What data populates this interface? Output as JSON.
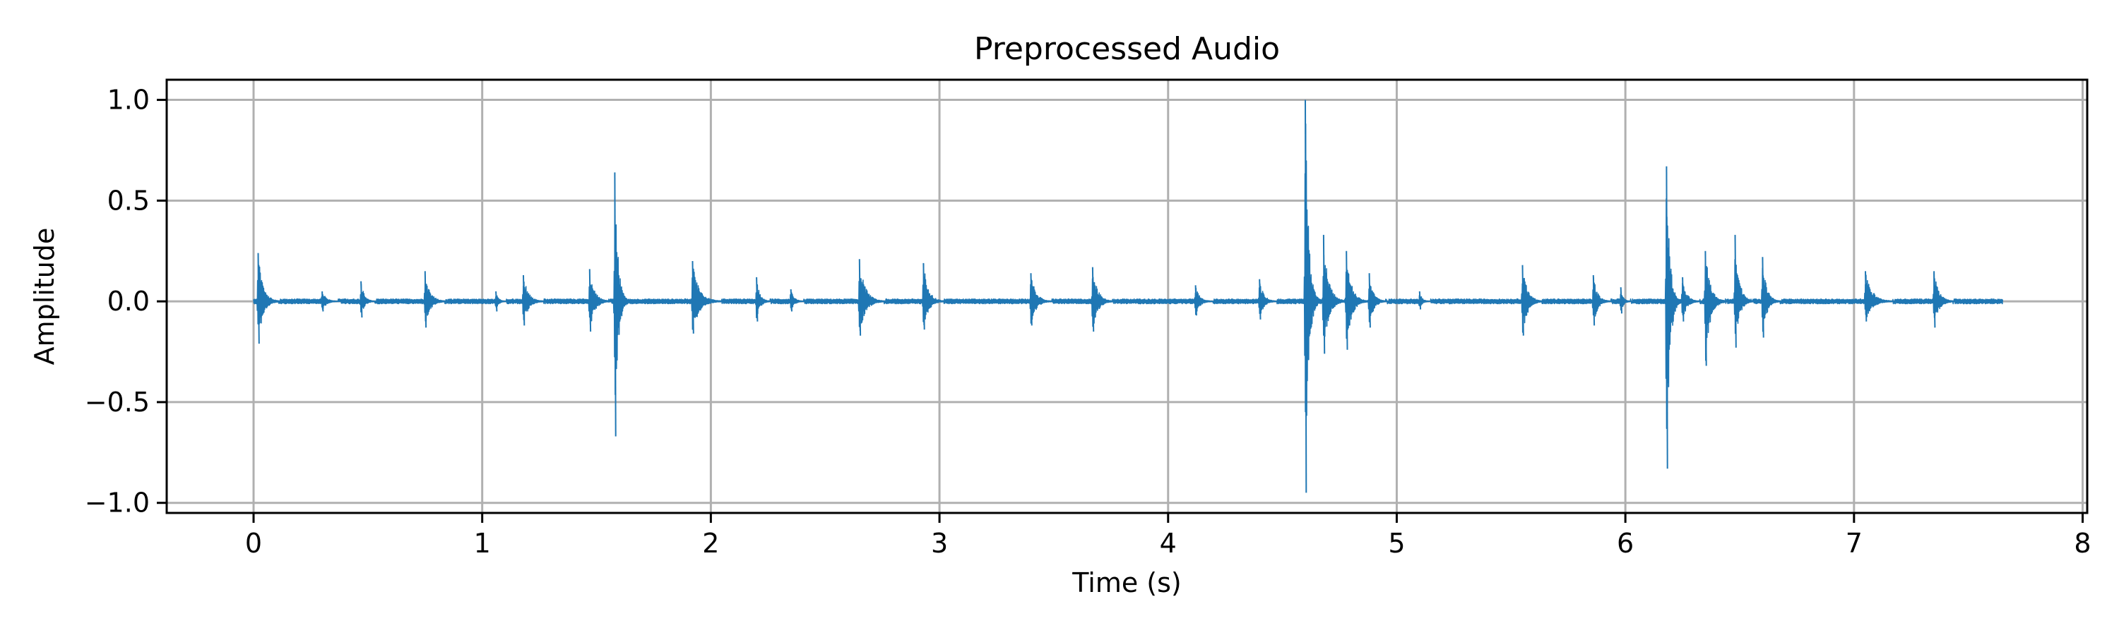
{
  "chart_data": {
    "type": "line",
    "title": "Preprocessed Audio",
    "xlabel": "Time (s)",
    "ylabel": "Amplitude",
    "xlim": [
      -0.38,
      8.02
    ],
    "ylim": [
      -1.05,
      1.1
    ],
    "xticks": [
      0,
      1,
      2,
      3,
      4,
      5,
      6,
      7,
      8
    ],
    "xtick_labels": [
      "0",
      "1",
      "2",
      "3",
      "4",
      "5",
      "6",
      "7",
      "8"
    ],
    "yticks": [
      1.0,
      0.5,
      0.0,
      -0.5,
      -1.0
    ],
    "ytick_labels": [
      "1.0",
      "0.5",
      "0.0",
      "−0.5",
      "−1.0"
    ],
    "grid": true,
    "series": [
      {
        "color": "#1f77b4",
        "x_start": 0.0,
        "x_end": 7.65,
        "bursts": [
          {
            "t": 0.02,
            "pos": 0.24,
            "neg": -0.21,
            "dur": 0.06
          },
          {
            "t": 0.3,
            "pos": 0.05,
            "neg": -0.05,
            "dur": 0.05
          },
          {
            "t": 0.47,
            "pos": 0.1,
            "neg": -0.08,
            "dur": 0.04
          },
          {
            "t": 0.75,
            "pos": 0.15,
            "neg": -0.13,
            "dur": 0.06
          },
          {
            "t": 1.06,
            "pos": 0.05,
            "neg": -0.05,
            "dur": 0.03
          },
          {
            "t": 1.18,
            "pos": 0.13,
            "neg": -0.12,
            "dur": 0.06
          },
          {
            "t": 1.47,
            "pos": 0.16,
            "neg": -0.15,
            "dur": 0.06
          },
          {
            "t": 1.58,
            "pos": 0.64,
            "neg": -0.67,
            "dur": 0.04
          },
          {
            "t": 1.92,
            "pos": 0.2,
            "neg": -0.16,
            "dur": 0.08
          },
          {
            "t": 2.2,
            "pos": 0.12,
            "neg": -0.1,
            "dur": 0.04
          },
          {
            "t": 2.35,
            "pos": 0.06,
            "neg": -0.05,
            "dur": 0.04
          },
          {
            "t": 2.65,
            "pos": 0.21,
            "neg": -0.17,
            "dur": 0.07
          },
          {
            "t": 2.93,
            "pos": 0.19,
            "neg": -0.14,
            "dur": 0.06
          },
          {
            "t": 3.4,
            "pos": 0.14,
            "neg": -0.12,
            "dur": 0.06
          },
          {
            "t": 3.67,
            "pos": 0.17,
            "neg": -0.15,
            "dur": 0.06
          },
          {
            "t": 4.12,
            "pos": 0.08,
            "neg": -0.07,
            "dur": 0.05
          },
          {
            "t": 4.4,
            "pos": 0.11,
            "neg": -0.09,
            "dur": 0.05
          },
          {
            "t": 4.6,
            "pos": 1.0,
            "neg": -0.95,
            "dur": 0.04
          },
          {
            "t": 4.68,
            "pos": 0.33,
            "neg": -0.26,
            "dur": 0.06
          },
          {
            "t": 4.78,
            "pos": 0.25,
            "neg": -0.24,
            "dur": 0.06
          },
          {
            "t": 4.88,
            "pos": 0.14,
            "neg": -0.13,
            "dur": 0.05
          },
          {
            "t": 5.1,
            "pos": 0.05,
            "neg": -0.04,
            "dur": 0.03
          },
          {
            "t": 5.55,
            "pos": 0.18,
            "neg": -0.17,
            "dur": 0.06
          },
          {
            "t": 5.86,
            "pos": 0.13,
            "neg": -0.12,
            "dur": 0.05
          },
          {
            "t": 5.98,
            "pos": 0.07,
            "neg": -0.06,
            "dur": 0.03
          },
          {
            "t": 6.18,
            "pos": 0.67,
            "neg": -0.83,
            "dur": 0.04
          },
          {
            "t": 6.25,
            "pos": 0.12,
            "neg": -0.1,
            "dur": 0.05
          },
          {
            "t": 6.35,
            "pos": 0.25,
            "neg": -0.32,
            "dur": 0.06
          },
          {
            "t": 6.48,
            "pos": 0.33,
            "neg": -0.23,
            "dur": 0.05
          },
          {
            "t": 6.6,
            "pos": 0.22,
            "neg": -0.18,
            "dur": 0.05
          },
          {
            "t": 7.05,
            "pos": 0.15,
            "neg": -0.1,
            "dur": 0.08
          },
          {
            "t": 7.35,
            "pos": 0.15,
            "neg": -0.13,
            "dur": 0.06
          }
        ]
      }
    ]
  }
}
